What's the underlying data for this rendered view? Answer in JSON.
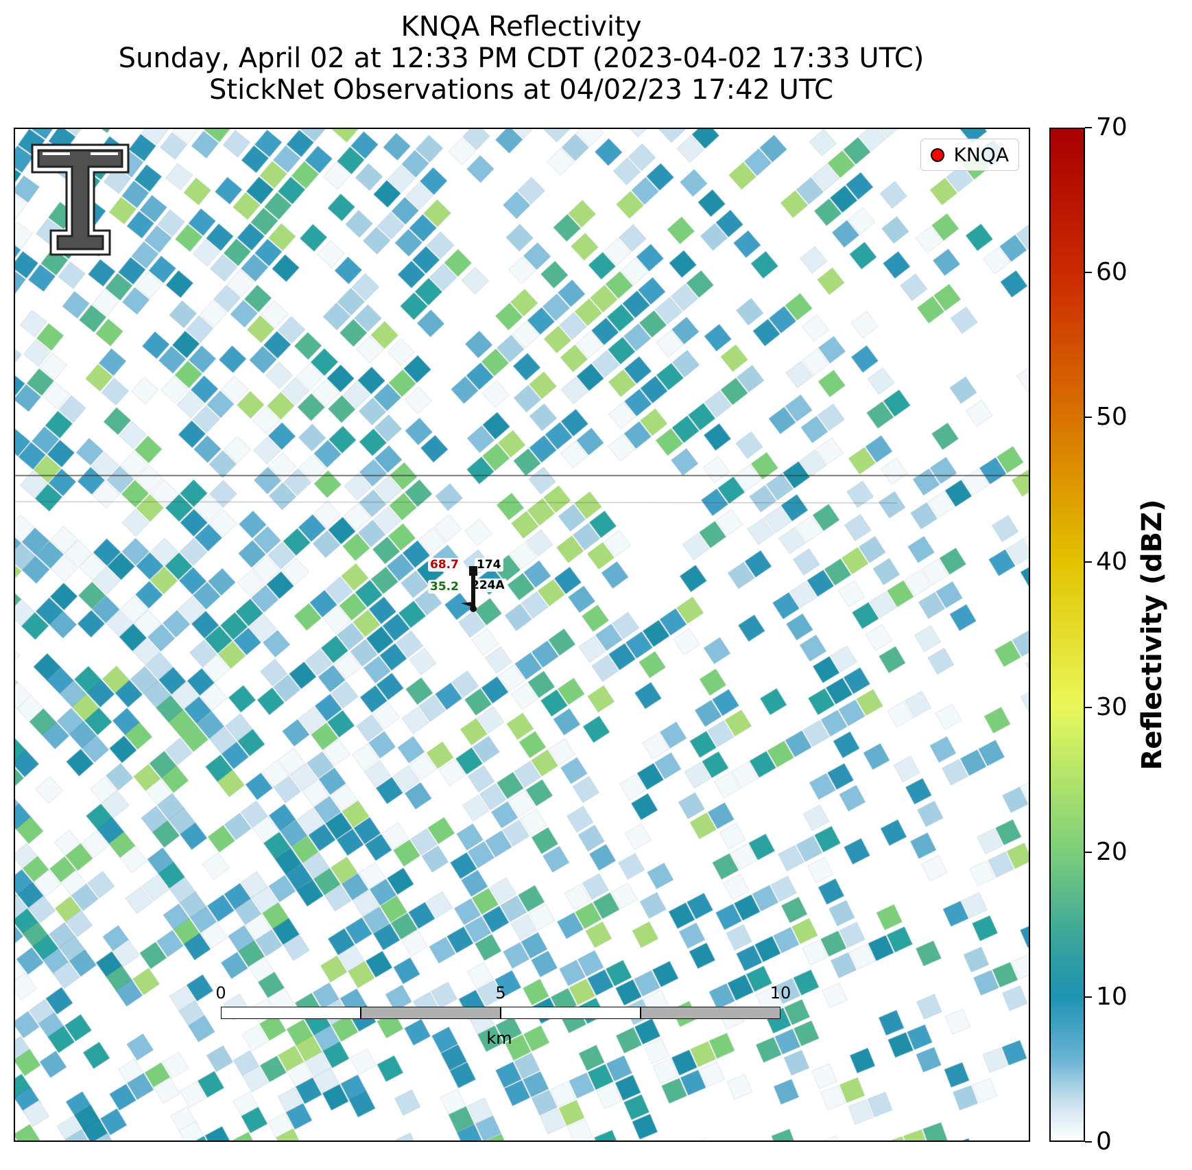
{
  "title": {
    "line1": "KNQA Reflectivity",
    "line2": "Sunday, April 02 at 12:33 PM CDT (2023-04-02 17:33 UTC)",
    "line3": "StickNet Observations at 04/02/23 17:42 UTC"
  },
  "legend": {
    "label": "KNQA",
    "marker_color": "#ff0000"
  },
  "logo": {
    "icon": "texas-tech-double-t-logo"
  },
  "station": {
    "id": "224A",
    "temperature": "68.7",
    "dewpoint": "35.2",
    "pressure": "174",
    "temperature_color": "#b00000",
    "dewpoint_color": "#1a6b1a"
  },
  "scalebar": {
    "ticks": [
      "0",
      "5",
      "10"
    ],
    "unit": "km"
  },
  "colorbar": {
    "label": "Reflectivity (dBZ)",
    "ticks": [
      "0",
      "10",
      "20",
      "30",
      "40",
      "50",
      "60",
      "70"
    ],
    "range": [
      0,
      70
    ]
  },
  "chart_data": {
    "type": "heatmap",
    "field": "reflectivity",
    "value_range_dbz": [
      0,
      70
    ],
    "dominant_range_dbz": [
      0,
      20
    ]
  }
}
